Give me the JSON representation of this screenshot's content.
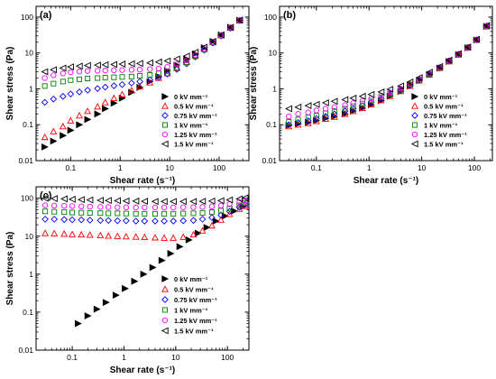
{
  "chart_data": [
    {
      "panel_label": "(a)",
      "type": "scatter",
      "x_scale": "log",
      "y_scale": "log",
      "xlim": [
        0.02,
        400
      ],
      "ylim": [
        0.01,
        200
      ],
      "xlabel": "Shear rate (s⁻¹)",
      "ylabel": "Shear stress (Pa)",
      "x_ticks": [
        0.1,
        1,
        10,
        100
      ],
      "x_tick_labels": [
        "0.1",
        "1",
        "10",
        "100"
      ],
      "y_ticks": [
        0.01,
        0.1,
        1,
        10,
        100
      ],
      "y_tick_labels": [
        "0.01",
        "0.1",
        "1",
        "10",
        "100"
      ],
      "legend_position": "center-right",
      "series": [
        {
          "name": "0 kV mm⁻¹",
          "marker": "triangle-right-filled",
          "color": "#000000",
          "x": [
            0.03,
            0.045,
            0.07,
            0.1,
            0.15,
            0.22,
            0.35,
            0.5,
            0.75,
            1.1,
            1.7,
            2.5,
            4,
            6,
            9,
            14,
            22,
            33,
            50,
            75,
            110,
            170,
            260
          ],
          "y": [
            0.024,
            0.035,
            0.05,
            0.07,
            0.1,
            0.14,
            0.2,
            0.28,
            0.4,
            0.55,
            0.8,
            1.1,
            1.6,
            2.2,
            3.2,
            4.6,
            6.5,
            9.5,
            14,
            21,
            32,
            52,
            82
          ]
        },
        {
          "name": "0.5 kV mm⁻¹",
          "marker": "triangle-up",
          "color": "#ff0000",
          "x": [
            0.03,
            0.045,
            0.07,
            0.1,
            0.15,
            0.22,
            0.35,
            0.5,
            0.75,
            1.1,
            1.7,
            2.5,
            4,
            6,
            9,
            14,
            22,
            33,
            50,
            75,
            110,
            170,
            260
          ],
          "y": [
            0.045,
            0.065,
            0.09,
            0.13,
            0.18,
            0.24,
            0.32,
            0.42,
            0.55,
            0.7,
            0.9,
            1.15,
            1.5,
            2,
            2.7,
            3.8,
            5.6,
            8.5,
            13,
            20,
            31,
            50,
            80
          ]
        },
        {
          "name": "0.75 kV mm⁻¹",
          "marker": "diamond",
          "color": "#0000ff",
          "x": [
            0.03,
            0.045,
            0.07,
            0.1,
            0.15,
            0.22,
            0.35,
            0.5,
            0.75,
            1.1,
            1.7,
            2.5,
            4,
            6,
            9,
            14,
            22,
            33,
            50,
            75,
            110,
            170,
            260
          ],
          "y": [
            0.42,
            0.52,
            0.62,
            0.72,
            0.82,
            0.92,
            1.02,
            1.12,
            1.22,
            1.32,
            1.45,
            1.6,
            1.8,
            2.1,
            2.6,
            3.5,
            5,
            7.8,
            12,
            19,
            30,
            49,
            80
          ]
        },
        {
          "name": "1 kV mm⁻¹",
          "marker": "square",
          "color": "#008000",
          "x": [
            0.03,
            0.045,
            0.07,
            0.1,
            0.15,
            0.22,
            0.35,
            0.5,
            0.75,
            1.1,
            1.7,
            2.5,
            4,
            6,
            9,
            14,
            22,
            33,
            50,
            75,
            110,
            170,
            260
          ],
          "y": [
            1.2,
            1.4,
            1.6,
            1.75,
            1.85,
            1.95,
            2,
            2.05,
            2.1,
            2.15,
            2.2,
            2.3,
            2.45,
            2.7,
            3.1,
            3.9,
            5.4,
            8,
            12.5,
            19.5,
            31,
            50,
            81
          ]
        },
        {
          "name": "1.25 kV mm⁻¹",
          "marker": "circle",
          "color": "#ff00ff",
          "x": [
            0.03,
            0.045,
            0.07,
            0.1,
            0.15,
            0.22,
            0.35,
            0.5,
            0.75,
            1.1,
            1.7,
            2.5,
            4,
            6,
            9,
            14,
            22,
            33,
            50,
            75,
            110,
            170,
            260
          ],
          "y": [
            2,
            2.4,
            2.7,
            2.9,
            3.05,
            3.15,
            3.2,
            3.25,
            3.3,
            3.35,
            3.4,
            3.45,
            3.55,
            3.7,
            4.1,
            4.8,
            6.2,
            8.8,
            13,
            20,
            31,
            51,
            82
          ]
        },
        {
          "name": "1.5 kV mm⁻¹",
          "marker": "triangle-left",
          "color": "#000000",
          "x": [
            0.03,
            0.045,
            0.07,
            0.1,
            0.15,
            0.22,
            0.35,
            0.5,
            0.75,
            1.1,
            1.7,
            2.5,
            4,
            6,
            9,
            14,
            22,
            33,
            50,
            75,
            110,
            170,
            260
          ],
          "y": [
            3,
            3.4,
            3.8,
            4.1,
            4.3,
            4.5,
            4.6,
            4.7,
            4.8,
            4.9,
            5,
            5.1,
            5.3,
            5.6,
            6,
            6.8,
            8.2,
            10.5,
            14.5,
            21,
            32,
            52,
            83
          ]
        }
      ]
    },
    {
      "panel_label": "(b)",
      "type": "scatter",
      "x_scale": "log",
      "y_scale": "log",
      "xlim": [
        0.02,
        220
      ],
      "ylim": [
        0.01,
        200
      ],
      "xlabel": "Shear rate (s⁻¹)",
      "ylabel": "Shear stress (Pa)",
      "x_ticks": [
        0.1,
        1,
        10,
        100
      ],
      "x_tick_labels": [
        "0.1",
        "1",
        "10",
        "100"
      ],
      "y_ticks": [
        0.01,
        0.1,
        1,
        10,
        100
      ],
      "y_tick_labels": [
        "0.01",
        "0.1",
        "1",
        "10",
        "100"
      ],
      "legend_position": "center-right",
      "series": [
        {
          "name": "0 kV mm⁻¹",
          "marker": "triangle-right-filled",
          "color": "#000000",
          "x": [
            0.03,
            0.045,
            0.07,
            0.1,
            0.15,
            0.22,
            0.35,
            0.5,
            0.75,
            1.1,
            1.7,
            2.5,
            4,
            6,
            9,
            14,
            22,
            33,
            50,
            75,
            110,
            170
          ],
          "y": [
            0.095,
            0.105,
            0.115,
            0.13,
            0.15,
            0.17,
            0.2,
            0.24,
            0.29,
            0.36,
            0.47,
            0.62,
            0.85,
            1.2,
            1.7,
            2.5,
            3.8,
            5.8,
            9,
            14,
            23,
            55
          ]
        },
        {
          "name": "0.5 kV mm⁻¹",
          "marker": "triangle-up",
          "color": "#ff0000",
          "x": [
            0.03,
            0.045,
            0.07,
            0.1,
            0.15,
            0.22,
            0.35,
            0.5,
            0.75,
            1.1,
            1.7,
            2.5,
            4,
            6,
            9,
            14,
            22,
            33,
            50,
            75,
            110,
            170
          ],
          "y": [
            0.09,
            0.1,
            0.11,
            0.125,
            0.145,
            0.165,
            0.2,
            0.24,
            0.29,
            0.37,
            0.48,
            0.63,
            0.86,
            1.2,
            1.7,
            2.5,
            3.8,
            5.8,
            9,
            14,
            23,
            55
          ]
        },
        {
          "name": "0.75 kV mm⁻¹",
          "marker": "diamond",
          "color": "#0000ff",
          "x": [
            0.03,
            0.045,
            0.07,
            0.1,
            0.15,
            0.22,
            0.35,
            0.5,
            0.75,
            1.1,
            1.7,
            2.5,
            4,
            6,
            9,
            14,
            22,
            33,
            50,
            75,
            110,
            170
          ],
          "y": [
            0.1,
            0.115,
            0.13,
            0.15,
            0.17,
            0.2,
            0.24,
            0.28,
            0.34,
            0.42,
            0.53,
            0.68,
            0.9,
            1.25,
            1.75,
            2.55,
            3.85,
            5.9,
            9.1,
            14.2,
            23,
            56
          ]
        },
        {
          "name": "1 kV mm⁻¹",
          "marker": "square",
          "color": "#008000",
          "x": [
            0.03,
            0.045,
            0.07,
            0.1,
            0.15,
            0.22,
            0.35,
            0.5,
            0.75,
            1.1,
            1.7,
            2.5,
            4,
            6,
            9,
            14,
            22,
            33,
            50,
            75,
            110,
            170
          ],
          "y": [
            0.12,
            0.14,
            0.16,
            0.18,
            0.21,
            0.24,
            0.28,
            0.33,
            0.39,
            0.47,
            0.58,
            0.73,
            0.95,
            1.3,
            1.8,
            2.6,
            3.9,
            6,
            9.2,
            14.3,
            23,
            56
          ]
        },
        {
          "name": "1.25 kV mm⁻¹",
          "marker": "circle",
          "color": "#ff00ff",
          "x": [
            0.03,
            0.045,
            0.07,
            0.1,
            0.15,
            0.22,
            0.35,
            0.5,
            0.75,
            1.1,
            1.7,
            2.5,
            4,
            6,
            9,
            14,
            22,
            33,
            50,
            75,
            110,
            170
          ],
          "y": [
            0.17,
            0.2,
            0.22,
            0.25,
            0.28,
            0.31,
            0.35,
            0.4,
            0.46,
            0.54,
            0.65,
            0.8,
            1.02,
            1.37,
            1.87,
            2.7,
            4,
            6.1,
            9.3,
            14.4,
            23.5,
            57
          ]
        },
        {
          "name": "1.5 kV mm⁻¹",
          "marker": "triangle-left",
          "color": "#000000",
          "x": [
            0.03,
            0.045,
            0.07,
            0.1,
            0.15,
            0.22,
            0.35,
            0.5,
            0.75,
            1.1,
            1.7,
            2.5,
            4,
            6,
            9,
            14,
            22,
            33,
            50,
            75,
            110,
            170
          ],
          "y": [
            0.28,
            0.31,
            0.34,
            0.37,
            0.41,
            0.45,
            0.5,
            0.55,
            0.62,
            0.7,
            0.82,
            0.97,
            1.2,
            1.55,
            2.05,
            2.9,
            4.2,
            6.3,
            9.6,
            14.7,
            24,
            58
          ]
        }
      ]
    },
    {
      "panel_label": "(c)",
      "type": "scatter",
      "x_scale": "log",
      "y_scale": "log",
      "xlim": [
        0.02,
        260
      ],
      "ylim": [
        0.01,
        200
      ],
      "xlabel": "Shear rate (s⁻¹)",
      "ylabel": "Shear stress (Pa)",
      "x_ticks": [
        0.1,
        1,
        10,
        100
      ],
      "x_tick_labels": [
        "0.1",
        "1",
        "10",
        "100"
      ],
      "y_ticks": [
        0.01,
        0.1,
        1,
        10,
        100
      ],
      "y_tick_labels": [
        "0.01",
        "0.1",
        "1",
        "10",
        "100"
      ],
      "legend_position": "center-right",
      "series": [
        {
          "name": "0 kV mm⁻¹",
          "marker": "triangle-right-filled",
          "color": "#000000",
          "x": [
            0.13,
            0.2,
            0.3,
            0.45,
            0.7,
            1.05,
            1.6,
            2.4,
            3.6,
            5.4,
            8,
            12,
            18,
            27,
            40,
            60,
            90,
            135,
            200
          ],
          "y": [
            0.05,
            0.08,
            0.12,
            0.18,
            0.28,
            0.42,
            0.65,
            1,
            1.5,
            2.3,
            3.5,
            5.3,
            8,
            12,
            17,
            25,
            34,
            46,
            60
          ]
        },
        {
          "name": "0.5 kV mm⁻¹",
          "marker": "triangle-up",
          "color": "#ff0000",
          "x": [
            0.03,
            0.045,
            0.07,
            0.1,
            0.15,
            0.22,
            0.35,
            0.5,
            0.75,
            1.1,
            1.7,
            2.5,
            4,
            6,
            9,
            14,
            22,
            33,
            50,
            75,
            110,
            170,
            220
          ],
          "y": [
            12,
            11.8,
            11.5,
            11.2,
            11,
            10.8,
            10.5,
            10.2,
            10,
            9.8,
            9.6,
            9.4,
            9.2,
            9,
            9,
            9.5,
            11,
            14,
            19,
            27,
            38,
            52,
            62
          ]
        },
        {
          "name": "0.75 kV mm⁻¹",
          "marker": "diamond",
          "color": "#0000ff",
          "x": [
            0.03,
            0.045,
            0.07,
            0.1,
            0.15,
            0.22,
            0.35,
            0.5,
            0.75,
            1.1,
            1.7,
            2.5,
            4,
            6,
            9,
            14,
            22,
            33,
            50,
            75,
            110,
            170,
            220
          ],
          "y": [
            28,
            28,
            27.5,
            27,
            27,
            26.5,
            26,
            26,
            25.5,
            25.5,
            25,
            25,
            25,
            25,
            25,
            25.5,
            26,
            28,
            31,
            36,
            45,
            58,
            68
          ]
        },
        {
          "name": "1 kV mm⁻¹",
          "marker": "square",
          "color": "#008000",
          "x": [
            0.03,
            0.045,
            0.07,
            0.1,
            0.15,
            0.22,
            0.35,
            0.5,
            0.75,
            1.1,
            1.7,
            2.5,
            4,
            6,
            9,
            14,
            22,
            33,
            50,
            75,
            110,
            170,
            220
          ],
          "y": [
            45,
            44,
            43,
            42,
            41.5,
            41,
            40.5,
            40,
            40,
            39.5,
            39,
            39,
            39,
            39,
            39,
            39.5,
            40,
            41,
            43,
            47,
            54,
            65,
            75
          ]
        },
        {
          "name": "1.25 kV mm⁻¹",
          "marker": "circle",
          "color": "#ff00ff",
          "x": [
            0.03,
            0.045,
            0.07,
            0.1,
            0.15,
            0.22,
            0.35,
            0.5,
            0.75,
            1.1,
            1.7,
            2.5,
            4,
            6,
            9,
            14,
            22,
            33,
            50,
            75,
            110,
            170,
            220
          ],
          "y": [
            65,
            64,
            63,
            62,
            61,
            60,
            59,
            58.5,
            58,
            57.5,
            57,
            57,
            57,
            57,
            57,
            57.5,
            58,
            59,
            61,
            64,
            70,
            80,
            88
          ]
        },
        {
          "name": "1.5 kV mm⁻¹",
          "marker": "triangle-left",
          "color": "#000000",
          "x": [
            0.03,
            0.045,
            0.07,
            0.1,
            0.15,
            0.22,
            0.35,
            0.5,
            0.75,
            1.1,
            1.7,
            2.5,
            4,
            6,
            9,
            14,
            22,
            33,
            50,
            75,
            110,
            170,
            220
          ],
          "y": [
            100,
            98,
            96,
            94,
            92,
            90,
            88,
            87,
            86,
            85,
            84,
            83,
            82,
            82,
            82,
            82,
            82,
            83,
            84,
            86,
            90,
            96,
            102
          ]
        }
      ]
    }
  ]
}
